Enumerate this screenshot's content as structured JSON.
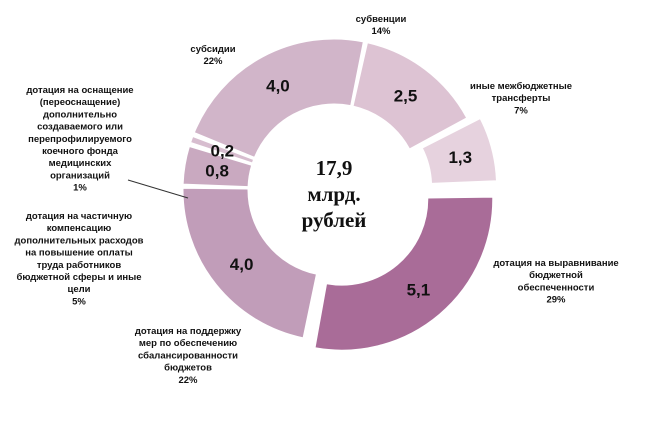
{
  "chart_data": {
    "type": "pie",
    "variant": "donut",
    "center_label": [
      "17,9",
      "млрд.",
      "рублей"
    ],
    "slices": [
      {
        "key": "subventions",
        "value": 2.5,
        "value_label": "2,5",
        "label_lines": [
          "субвенции"
        ],
        "percent_label": "14%",
        "color": "#ddc3d3",
        "exploded": false
      },
      {
        "key": "other-transfers",
        "value": 1.3,
        "value_label": "1,3",
        "label_lines": [
          "иные межбюджетные",
          "трансферты"
        ],
        "percent_label": "7%",
        "color": "#e6d2de",
        "exploded": true
      },
      {
        "key": "equalization",
        "value": 5.1,
        "value_label": "5,1",
        "label_lines": [
          "дотация на выравнивание",
          "бюджетной",
          "обеспеченности"
        ],
        "percent_label": "29%",
        "color": "#a96c98",
        "exploded": true
      },
      {
        "key": "balancing",
        "value": 4.0,
        "value_label": "4,0",
        "label_lines": [
          "дотация на поддержку",
          "мер по обеспечению",
          "сбалансированности",
          "бюджетов"
        ],
        "percent_label": "22%",
        "color": "#c19db9",
        "exploded": false
      },
      {
        "key": "compensation",
        "value": 0.8,
        "value_label": "0,8",
        "label_lines": [
          "дотация на частичную",
          "компенсацию",
          "дополнительных расходов",
          "на повышение оплаты",
          "труда работников",
          "бюджетной сферы и иные",
          "цели"
        ],
        "percent_label": "5%",
        "color": "#c9a9c0",
        "exploded": false
      },
      {
        "key": "equipment",
        "value": 0.2,
        "value_label": "0,2",
        "label_lines": [
          "дотация на оснащение",
          "(переоснащение)",
          "дополнительно",
          "создаваемого или",
          "перепрофилируемого",
          "коечного фонда",
          "медицинских",
          "организаций"
        ],
        "percent_label": "1%",
        "color": "#d7bdcf",
        "exploded": false
      },
      {
        "key": "subsidies",
        "value": 4.0,
        "value_label": "4,0",
        "label_lines": [
          "субсидии"
        ],
        "percent_label": "22%",
        "color": "#d1b5c9",
        "exploded": false
      }
    ]
  }
}
